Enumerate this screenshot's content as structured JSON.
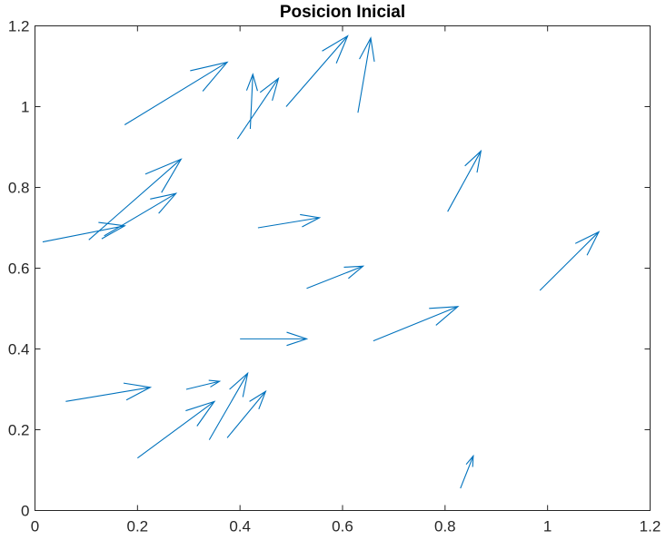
{
  "chart_data": {
    "type": "quiver",
    "title": "Posicion Inicial",
    "xlabel": "",
    "ylabel": "",
    "xlim": [
      0,
      1.2
    ],
    "ylim": [
      0,
      1.2
    ],
    "xticks": [
      "0",
      "0.2",
      "0.4",
      "0.6",
      "0.8",
      "1",
      "1.2"
    ],
    "yticks": [
      "0",
      "0.2",
      "0.4",
      "0.6",
      "0.8",
      "1",
      "1.2"
    ],
    "grid": false,
    "color": "#0072BD",
    "vectors": [
      {
        "x": 0.175,
        "y": 0.955,
        "u": 0.2,
        "v": 0.155
      },
      {
        "x": 0.42,
        "y": 0.945,
        "u": 0.005,
        "v": 0.135
      },
      {
        "x": 0.395,
        "y": 0.92,
        "u": 0.08,
        "v": 0.15
      },
      {
        "x": 0.49,
        "y": 1.0,
        "u": 0.12,
        "v": 0.175
      },
      {
        "x": 0.63,
        "y": 0.985,
        "u": 0.025,
        "v": 0.185
      },
      {
        "x": 0.105,
        "y": 0.67,
        "u": 0.18,
        "v": 0.2
      },
      {
        "x": 0.135,
        "y": 0.68,
        "u": 0.14,
        "v": 0.105
      },
      {
        "x": 0.015,
        "y": 0.665,
        "u": 0.16,
        "v": 0.04
      },
      {
        "x": 0.435,
        "y": 0.7,
        "u": 0.12,
        "v": 0.025
      },
      {
        "x": 0.805,
        "y": 0.74,
        "u": 0.065,
        "v": 0.15
      },
      {
        "x": 0.53,
        "y": 0.55,
        "u": 0.11,
        "v": 0.055
      },
      {
        "x": 0.985,
        "y": 0.545,
        "u": 0.115,
        "v": 0.145
      },
      {
        "x": 0.4,
        "y": 0.425,
        "u": 0.13,
        "v": 0.0
      },
      {
        "x": 0.66,
        "y": 0.42,
        "u": 0.165,
        "v": 0.085
      },
      {
        "x": 0.06,
        "y": 0.27,
        "u": 0.165,
        "v": 0.035
      },
      {
        "x": 0.295,
        "y": 0.3,
        "u": 0.065,
        "v": 0.02
      },
      {
        "x": 0.2,
        "y": 0.13,
        "u": 0.15,
        "v": 0.14
      },
      {
        "x": 0.34,
        "y": 0.175,
        "u": 0.075,
        "v": 0.165
      },
      {
        "x": 0.375,
        "y": 0.18,
        "u": 0.075,
        "v": 0.115
      },
      {
        "x": 0.83,
        "y": 0.055,
        "u": 0.025,
        "v": 0.08
      }
    ]
  }
}
